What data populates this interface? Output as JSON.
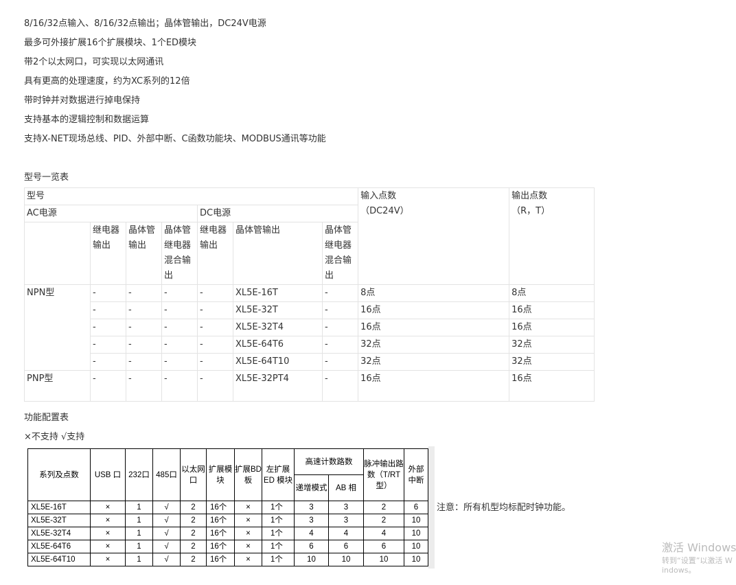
{
  "features": [
    "8/16/32点输入、8/16/32点输出；晶体管输出，DC24V电源",
    "最多可外接扩展16个扩展模块、1个ED模块",
    "带2个以太网口，可实现以太网通讯",
    "具有更高的处理速度，约为XC系列的12倍",
    "带时钟并对数据进行掉电保持",
    "支持基本的逻辑控制和数据运算",
    "支持X-NET现场总线、PID、外部中断、C函数功能块、MODBUS通讯等功能"
  ],
  "model_table": {
    "title": "型号一览表",
    "h_model": "型号",
    "h_ac": "AC电源",
    "h_dc": "DC电源",
    "h_input": "输入点数",
    "h_input_sub": "（DC24V）",
    "h_output": "输出点数",
    "h_output_sub": "（R，T）",
    "sub": [
      "继电器输出",
      "晶体管输出",
      "晶体管继电器混合输出",
      "继电器输出",
      "晶体管输出",
      "晶体管继电器混合输出"
    ],
    "groups": [
      {
        "type": "NPN型",
        "rows": [
          [
            "-",
            "-",
            "-",
            "-",
            "XL5E-16T",
            "-",
            "8点",
            "8点"
          ],
          [
            "-",
            "-",
            "-",
            "-",
            "XL5E-32T",
            "-",
            "16点",
            "16点"
          ],
          [
            "-",
            "-",
            "-",
            "-",
            "XL5E-32T4",
            "-",
            "16点",
            "16点"
          ],
          [
            "-",
            "-",
            "-",
            "-",
            "XL5E-64T6",
            "-",
            "32点",
            "32点"
          ],
          [
            "-",
            "-",
            "-",
            "-",
            "XL5E-64T10",
            "-",
            "32点",
            "32点"
          ]
        ]
      },
      {
        "type": "PNP型",
        "rows": [
          [
            "-",
            "-",
            "-",
            "-",
            "XL5E-32PT4",
            "-",
            "16点",
            "16点"
          ]
        ]
      }
    ]
  },
  "func_table": {
    "title": "功能配置表",
    "legend": "×不支持  √支持",
    "headers": [
      "系列及点数",
      "USB 口",
      "232口",
      "485口",
      "以太网口",
      "扩展模块",
      "扩展BD板",
      "左扩展 ED 模块",
      "高速计数路数",
      "脉冲输出路数（T/RT型）",
      "外部中断"
    ],
    "sub_headers": [
      "递增模式",
      "AB 相"
    ],
    "rows": [
      [
        "XL5E-16T",
        "×",
        "1",
        "√",
        "2",
        "16个",
        "×",
        "1个",
        "3",
        "3",
        "2",
        "6"
      ],
      [
        "XL5E-32T",
        "×",
        "1",
        "√",
        "2",
        "16个",
        "×",
        "1个",
        "3",
        "3",
        "2",
        "10"
      ],
      [
        "XL5E-32T4",
        "×",
        "1",
        "√",
        "2",
        "16个",
        "×",
        "1个",
        "4",
        "4",
        "4",
        "10"
      ],
      [
        "XL5E-64T6",
        "×",
        "1",
        "√",
        "2",
        "16个",
        "×",
        "1个",
        "6",
        "6",
        "6",
        "10"
      ],
      [
        "XL5E-64T10",
        "×",
        "1",
        "√",
        "2",
        "16个",
        "×",
        "1个",
        "10",
        "10",
        "10",
        "10"
      ]
    ],
    "note": "注意：所有机型均标配时钟功能。"
  },
  "watermark": {
    "title": "激活 Windows",
    "sub": "转到“设置”以激活 Windows。"
  }
}
